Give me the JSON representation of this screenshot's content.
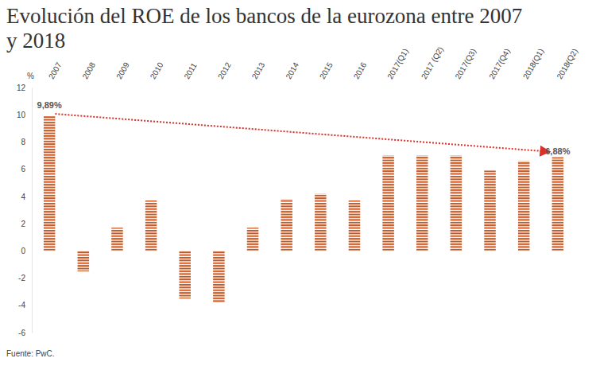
{
  "chart_data": {
    "type": "bar",
    "title": "Evolución del ROE de los bancos de la eurozona entre 2007 y 2018",
    "y_label": "%",
    "source": "Fuente: PwC.",
    "categories": [
      "2007",
      "2008",
      "2009",
      "2010",
      "2011",
      "2012",
      "2013",
      "2014",
      "2015",
      "2016",
      "2017(Q1)",
      "2017 (Q2)",
      "2017(Q3)",
      "2017(Q4)",
      "2018(Q1)",
      "2018(Q2)"
    ],
    "values": [
      9.89,
      -1.5,
      1.7,
      3.7,
      -3.5,
      -3.8,
      1.7,
      3.8,
      4.2,
      3.7,
      7.0,
      7.0,
      7.0,
      5.9,
      6.6,
      6.88
    ],
    "value_labels": [
      "9,89%",
      null,
      null,
      null,
      null,
      null,
      null,
      null,
      null,
      null,
      null,
      null,
      null,
      null,
      null,
      "6,88%"
    ],
    "color": "#c9551f",
    "ylim": [
      -6,
      12
    ],
    "yticks": [
      -6,
      -4,
      -2,
      0,
      2,
      4,
      6,
      8,
      10,
      12
    ],
    "grid": false
  }
}
